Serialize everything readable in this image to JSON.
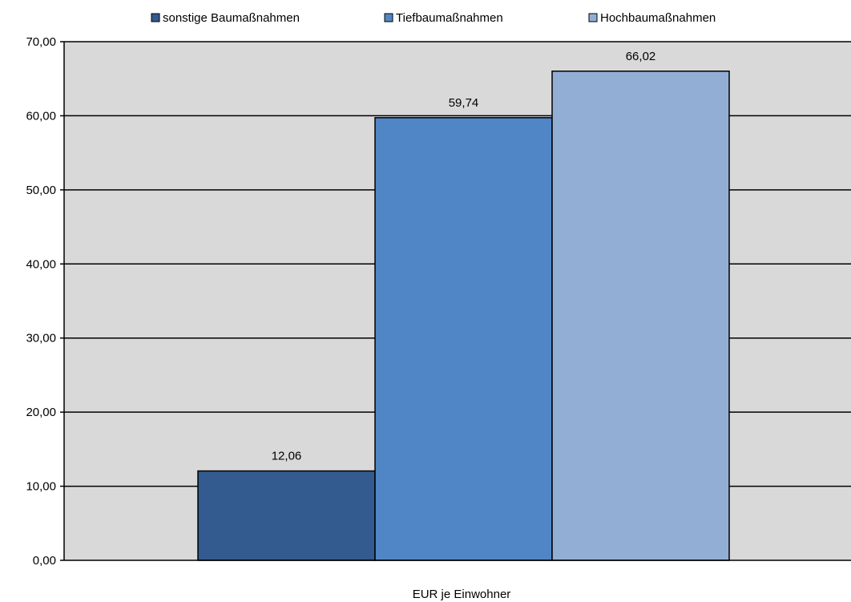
{
  "chart_data": {
    "type": "bar",
    "categories": [
      "EUR je Einwohner"
    ],
    "series": [
      {
        "name": "sonstige Baumaßnahmen",
        "values": [
          12.06
        ],
        "label": "12,06",
        "color": "#335b8f"
      },
      {
        "name": "Tiefbaumaßnahmen",
        "values": [
          59.74
        ],
        "label": "59,74",
        "color": "#5186c6"
      },
      {
        "name": "Hochbaumaßnahmen",
        "values": [
          66.02
        ],
        "label": "66,02",
        "color": "#93aed5"
      }
    ],
    "title": "",
    "xlabel": "EUR je Einwohner",
    "ylabel": "",
    "ylim": [
      0,
      70
    ],
    "yticks": [
      0,
      10,
      20,
      30,
      40,
      50,
      60,
      70
    ],
    "ytick_labels": [
      "0,00",
      "10,00",
      "20,00",
      "30,00",
      "40,00",
      "50,00",
      "60,00",
      "70,00"
    ],
    "grid": true,
    "legend_position": "top",
    "plot_background": "#d9d9d9",
    "gridline_color": "#000000"
  }
}
